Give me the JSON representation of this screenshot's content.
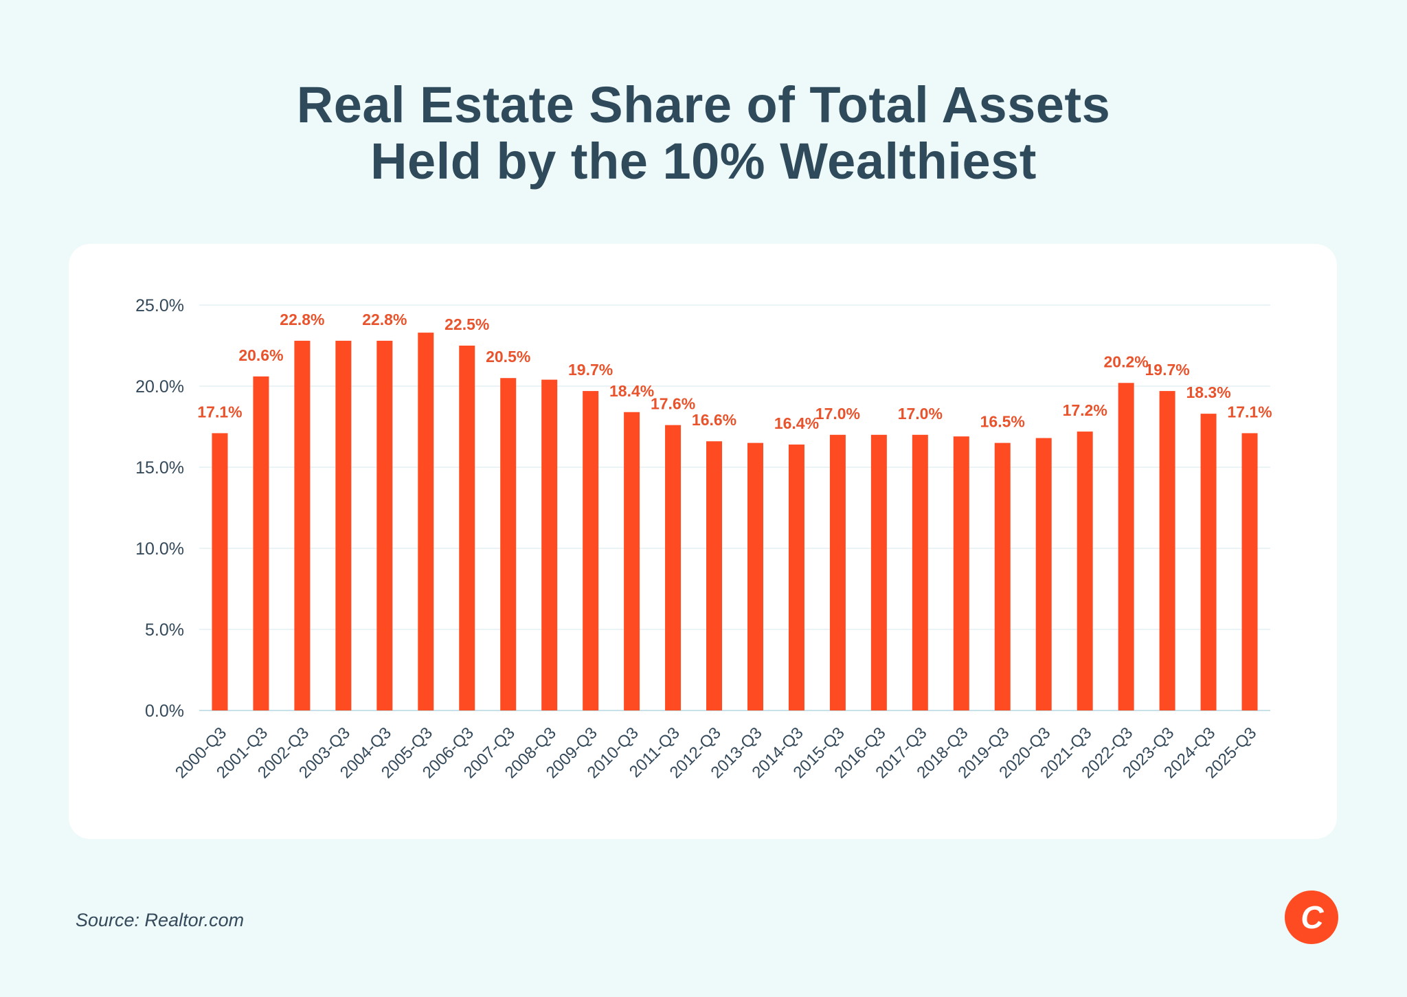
{
  "colors": {
    "background": "#eef9f9",
    "card": "#ffffff",
    "title": "#2f4a5b",
    "bar": "#ff4b22",
    "data_label": "#e8532c",
    "axis_text": "#34495a",
    "grid": "#e3eff2",
    "axis_line": "#c6e2e8",
    "logo": "#ff4b22",
    "logo_letter": "#ffffff"
  },
  "logo": {
    "letter": "C"
  },
  "footer": {
    "source": "Source: Realtor.com"
  },
  "chart_data": {
    "type": "bar",
    "title": "Real Estate Share of Total Assets Held by the 10% Wealthiest",
    "categories": [
      "2000-Q3",
      "2001-Q3",
      "2002-Q3",
      "2003-Q3",
      "2004-Q3",
      "2005-Q3",
      "2006-Q3",
      "2007-Q3",
      "2008-Q3",
      "2009-Q3",
      "2010-Q3",
      "2011-Q3",
      "2012-Q3",
      "2013-Q3",
      "2014-Q3",
      "2015-Q3",
      "2016-Q3",
      "2017-Q3",
      "2018-Q3",
      "2019-Q3",
      "2020-Q3",
      "2021-Q3",
      "2022-Q3",
      "2023-Q3",
      "2024-Q3",
      "2025-Q3"
    ],
    "values": [
      17.1,
      20.6,
      22.8,
      22.8,
      22.8,
      23.3,
      22.5,
      20.5,
      20.4,
      19.7,
      18.4,
      17.6,
      16.6,
      16.5,
      16.4,
      17.0,
      17.0,
      17.0,
      16.9,
      16.5,
      16.8,
      17.2,
      20.2,
      19.7,
      18.3,
      17.1
    ],
    "data_labels": [
      "17.1%",
      "20.6%",
      "22.8%",
      null,
      "22.8%",
      null,
      "22.5%",
      "20.5%",
      null,
      "19.7%",
      "18.4%",
      "17.6%",
      "16.6%",
      null,
      "16.4%",
      "17.0%",
      null,
      "17.0%",
      null,
      "16.5%",
      null,
      "17.2%",
      "20.2%",
      "19.7%",
      "18.3%",
      "17.1%"
    ],
    "y_ticks": [
      {
        "value": 0,
        "label": "0.0%"
      },
      {
        "value": 5,
        "label": "5.0%"
      },
      {
        "value": 10,
        "label": "10.0%"
      },
      {
        "value": 15,
        "label": "15.0%"
      },
      {
        "value": 20,
        "label": "20.0%"
      },
      {
        "value": 25,
        "label": "25.0%"
      }
    ],
    "ylim": [
      0,
      25
    ],
    "grid": true
  }
}
